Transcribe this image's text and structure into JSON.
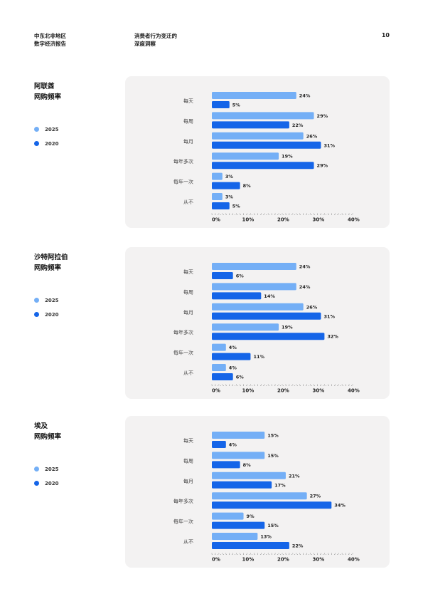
{
  "header": {
    "left": [
      "中东北非地区",
      "数字经济报告"
    ],
    "mid": [
      "消费者行为变迁的",
      "深度洞察"
    ],
    "page_number": "10"
  },
  "colors": {
    "s2025": "#74aff6",
    "s2020": "#1565e8",
    "card_bg": "#f3f2f2"
  },
  "sections": [
    {
      "title": [
        "阿联酋",
        "网购频率"
      ],
      "legend": [
        "2025",
        "2020"
      ]
    },
    {
      "title": [
        "沙特阿拉伯",
        "网购频率"
      ],
      "legend": [
        "2025",
        "2020"
      ]
    },
    {
      "title": [
        "埃及",
        "网购频率"
      ],
      "legend": [
        "2025",
        "2020"
      ]
    }
  ],
  "chart_data": [
    {
      "type": "bar",
      "orientation": "horizontal",
      "categories": [
        "每天",
        "每周",
        "每月",
        "每年多次",
        "每年一次",
        "从不"
      ],
      "series": [
        {
          "name": "2025",
          "values": [
            24,
            29,
            26,
            19,
            3,
            3
          ],
          "labels": [
            "24%",
            "29%",
            "26%",
            "19%",
            "3%",
            "3%"
          ]
        },
        {
          "name": "2020",
          "values": [
            5,
            22,
            31,
            29,
            8,
            5
          ],
          "labels": [
            "5%",
            "22%",
            "31%",
            "29%",
            "8%",
            "5%"
          ]
        }
      ],
      "xlim": [
        0,
        40
      ],
      "xticks": [
        0,
        10,
        20,
        30,
        40
      ],
      "xtick_labels": [
        "0%",
        "10%",
        "20%",
        "30%",
        "40%"
      ],
      "grid": false
    },
    {
      "type": "bar",
      "orientation": "horizontal",
      "categories": [
        "每天",
        "每周",
        "每月",
        "每年多次",
        "每年一次",
        "从不"
      ],
      "series": [
        {
          "name": "2025",
          "values": [
            24,
            24,
            26,
            19,
            4,
            4
          ],
          "labels": [
            "24%",
            "24%",
            "26%",
            "19%",
            "4%",
            "4%"
          ]
        },
        {
          "name": "2020",
          "values": [
            6,
            14,
            31,
            32,
            11,
            6
          ],
          "labels": [
            "6%",
            "14%",
            "31%",
            "32%",
            "11%",
            "6%"
          ]
        }
      ],
      "xlim": [
        0,
        40
      ],
      "xticks": [
        0,
        10,
        20,
        30,
        40
      ],
      "xtick_labels": [
        "0%",
        "10%",
        "20%",
        "30%",
        "40%"
      ],
      "grid": false
    },
    {
      "type": "bar",
      "orientation": "horizontal",
      "categories": [
        "每天",
        "每周",
        "每月",
        "每年多次",
        "每年一次",
        "从不"
      ],
      "series": [
        {
          "name": "2025",
          "values": [
            15,
            15,
            21,
            27,
            9,
            13
          ],
          "labels": [
            "15%",
            "15%",
            "21%",
            "27%",
            "9%",
            "13%"
          ]
        },
        {
          "name": "2020",
          "values": [
            4,
            8,
            17,
            34,
            15,
            22
          ],
          "labels": [
            "4%",
            "8%",
            "17%",
            "34%",
            "15%",
            "22%"
          ]
        }
      ],
      "xlim": [
        0,
        40
      ],
      "xticks": [
        0,
        10,
        20,
        30,
        40
      ],
      "xtick_labels": [
        "0%",
        "10%",
        "20%",
        "30%",
        "40%"
      ],
      "grid": false
    }
  ]
}
